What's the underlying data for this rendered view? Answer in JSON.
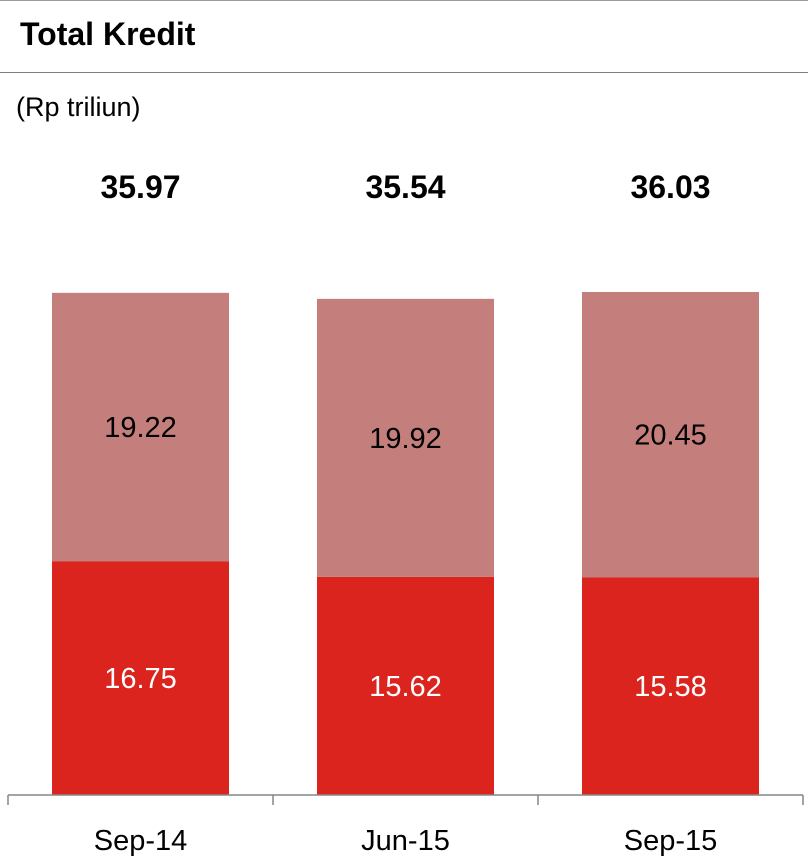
{
  "title": "Total Kredit",
  "unit_label": "(Rp triliun)",
  "colors": {
    "top_segment": "#c47f7c",
    "bottom_segment": "#dc241f",
    "axis": "#868686"
  },
  "chart_data": {
    "type": "bar",
    "stacked": true,
    "categories": [
      "Sep-14",
      "Jun-15",
      "Sep-15"
    ],
    "series": [
      {
        "values": [
          16.75,
          15.62,
          15.58
        ]
      },
      {
        "values": [
          19.22,
          19.92,
          20.45
        ]
      }
    ],
    "totals": [
      35.97,
      35.54,
      36.03
    ],
    "title": "Total Kredit",
    "ylabel": "(Rp triliun)",
    "ylim": [
      0,
      36.03
    ],
    "grid": false,
    "legend": "none"
  }
}
